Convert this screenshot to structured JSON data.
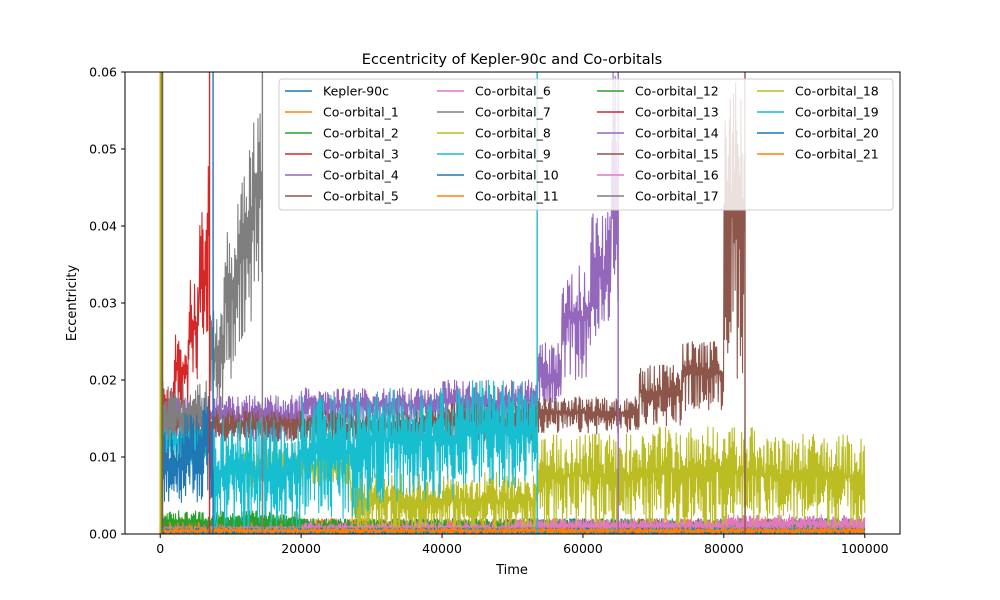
{
  "chart_data": {
    "type": "line",
    "title": "Eccentricity of Kepler-90c and Co-orbitals",
    "xlabel": "Time",
    "ylabel": "Eccentricity",
    "xlim": [
      -5000,
      105000
    ],
    "ylim": [
      0,
      0.06
    ],
    "xticks": [
      0,
      20000,
      40000,
      60000,
      80000,
      100000
    ],
    "xtick_labels": [
      "0",
      "20000",
      "40000",
      "60000",
      "80000",
      "100000"
    ],
    "yticks": [
      0,
      0.01,
      0.02,
      0.03,
      0.04,
      0.05,
      0.06
    ],
    "ytick_labels": [
      "0.00",
      "0.01",
      "0.02",
      "0.03",
      "0.04",
      "0.05",
      "0.06"
    ],
    "grid": false,
    "legend": {
      "placement": "top-right",
      "columns": 4
    },
    "series": [
      {
        "name": "Kepler-90c",
        "color": "#1f77b4",
        "t_end": 100000,
        "segments": [
          [
            0,
            0.0,
            0.002
          ]
        ]
      },
      {
        "name": "Co-orbital_1",
        "color": "#ff7f0e",
        "t_end": 100000,
        "segments": [
          [
            0,
            0.0,
            0.002
          ]
        ]
      },
      {
        "name": "Co-orbital_2",
        "color": "#2ca02c",
        "t_end": 100000,
        "segments": [
          [
            0,
            0.0,
            0.003
          ],
          [
            20000,
            0.0,
            0.002
          ]
        ]
      },
      {
        "name": "Co-orbital_3",
        "color": "#d62728",
        "t_end": 7000,
        "segments": [
          [
            0,
            0.012,
            0.02
          ],
          [
            2000,
            0.016,
            0.026
          ],
          [
            4000,
            0.02,
            0.033
          ],
          [
            5500,
            0.024,
            0.042
          ],
          [
            6800,
            0.03,
            0.048
          ]
        ]
      },
      {
        "name": "Co-orbital_4",
        "color": "#9467bd",
        "t_end": 65000,
        "segments": [
          [
            0,
            0.012,
            0.018
          ],
          [
            20000,
            0.014,
            0.019
          ],
          [
            40000,
            0.014,
            0.02
          ],
          [
            53500,
            0.015,
            0.025
          ],
          [
            57000,
            0.02,
            0.035
          ],
          [
            61000,
            0.024,
            0.042
          ],
          [
            64000,
            0.03,
            0.06
          ]
        ]
      },
      {
        "name": "Co-orbital_5",
        "color": "#8c564b",
        "t_end": 83000,
        "segments": [
          [
            0,
            0.012,
            0.016
          ],
          [
            40000,
            0.012,
            0.017
          ],
          [
            53500,
            0.013,
            0.018
          ],
          [
            68000,
            0.014,
            0.022
          ],
          [
            74000,
            0.016,
            0.025
          ],
          [
            80000,
            0.02,
            0.06
          ]
        ]
      },
      {
        "name": "Co-orbital_6",
        "color": "#e377c2",
        "t_end": 100000,
        "segments": [
          [
            0,
            0.0,
            0.001
          ],
          [
            20000,
            0.0,
            0.0015
          ],
          [
            50000,
            0.0,
            0.002
          ],
          [
            80000,
            0.0,
            0.0025
          ]
        ]
      },
      {
        "name": "Co-orbital_7",
        "color": "#7f7f7f",
        "t_end": 14500,
        "segments": [
          [
            0,
            0.01,
            0.02
          ],
          [
            7000,
            0.014,
            0.03
          ],
          [
            9000,
            0.02,
            0.04
          ],
          [
            11000,
            0.025,
            0.05
          ],
          [
            13000,
            0.03,
            0.06
          ]
        ]
      },
      {
        "name": "Co-orbital_8",
        "color": "#bcbd22",
        "t_end": 100000,
        "segments": [
          [
            10000,
            0.006,
            0.011
          ],
          [
            27000,
            0.0,
            0.008
          ],
          [
            53500,
            0.001,
            0.013
          ],
          [
            70000,
            0.001,
            0.014
          ],
          [
            85000,
            0.001,
            0.013
          ]
        ]
      },
      {
        "name": "Co-orbital_9",
        "color": "#17becf",
        "t_end": 53500,
        "segments": [
          [
            0,
            0.009,
            0.014
          ],
          [
            7500,
            0.0,
            0.015
          ],
          [
            20000,
            0.002,
            0.018
          ],
          [
            30000,
            0.004,
            0.019
          ],
          [
            42000,
            0.006,
            0.02
          ]
        ]
      },
      {
        "name": "Co-orbital_10",
        "color": "#1f77b4",
        "t_end": 7500,
        "segments": [
          [
            0,
            0.004,
            0.014
          ],
          [
            3000,
            0.004,
            0.016
          ],
          [
            6000,
            0.004,
            0.018
          ]
        ]
      },
      {
        "name": "Co-orbital_11",
        "color": "#ff7f0e",
        "t_end": 100000,
        "segments": [
          [
            0,
            0.0,
            0.0008
          ]
        ]
      },
      {
        "name": "Co-orbital_12",
        "color": "#2ca02c",
        "t_end": 100000,
        "segments": [
          [
            0,
            0.0,
            0.0008
          ]
        ]
      },
      {
        "name": "Co-orbital_13",
        "color": "#d62728",
        "t_end": 100000,
        "segments": [
          [
            0,
            0.0,
            0.0008
          ]
        ]
      },
      {
        "name": "Co-orbital_14",
        "color": "#9467bd",
        "t_end": 100000,
        "segments": [
          [
            0,
            0.0,
            0.0008
          ]
        ]
      },
      {
        "name": "Co-orbital_15",
        "color": "#8c564b",
        "t_end": 100000,
        "segments": [
          [
            0,
            0.0,
            0.0008
          ]
        ]
      },
      {
        "name": "Co-orbital_16",
        "color": "#e377c2",
        "t_end": 100000,
        "segments": [
          [
            0,
            0.0,
            0.001
          ]
        ]
      },
      {
        "name": "Co-orbital_17",
        "color": "#7f7f7f",
        "t_end": 100000,
        "segments": [
          [
            0,
            0.0,
            0.0008
          ]
        ]
      },
      {
        "name": "Co-orbital_18",
        "color": "#bcbd22",
        "t_end": 100000,
        "segments": [
          [
            0,
            0.0,
            0.0008
          ]
        ]
      },
      {
        "name": "Co-orbital_19",
        "color": "#17becf",
        "t_end": 100000,
        "segments": [
          [
            0,
            0.0,
            0.0008
          ]
        ]
      },
      {
        "name": "Co-orbital_20",
        "color": "#1f77b4",
        "t_end": 100000,
        "segments": [
          [
            0,
            0.0,
            0.0008
          ]
        ]
      },
      {
        "name": "Co-orbital_21",
        "color": "#ff7f0e",
        "t_end": 100000,
        "segments": [
          [
            0,
            0.0,
            0.0008
          ]
        ]
      }
    ]
  }
}
